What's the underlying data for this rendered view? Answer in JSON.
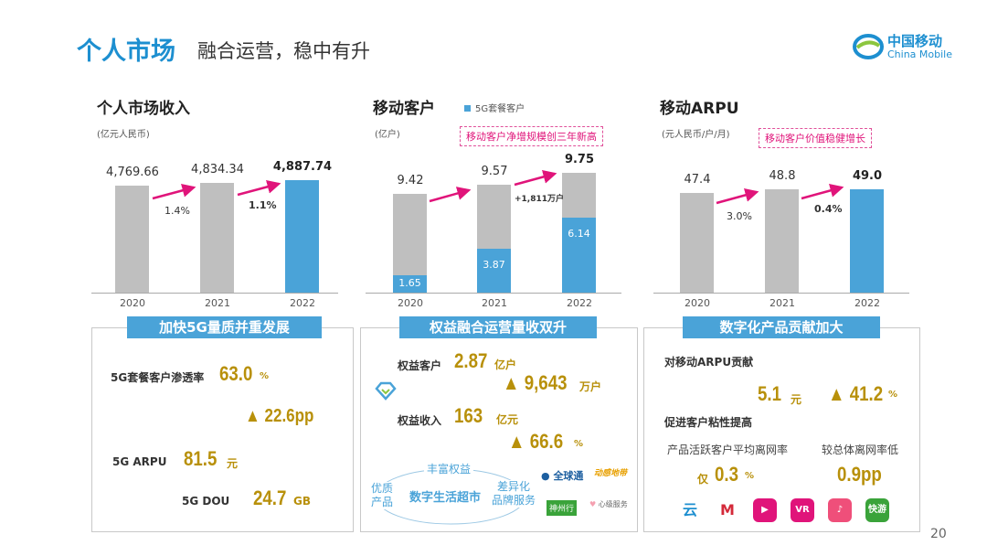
{
  "header": {
    "title": "个人市场",
    "subtitle": "融合运营，稳中有升",
    "logo_cn": "中国移动",
    "logo_en": "China Mobile"
  },
  "chart_data": [
    {
      "type": "bar",
      "title": "个人市场收入",
      "unit": "(亿元人民币)",
      "categories": [
        "2020",
        "2021",
        "2022"
      ],
      "values": [
        4769.66,
        4834.34,
        4887.74
      ],
      "value_labels": [
        "4,769.66",
        "4,834.34",
        "4,887.74"
      ],
      "growth_labels": [
        "1.4%",
        "1.1%"
      ],
      "highlight_color": "#4aa3d8",
      "base_color": "#bfbfbf"
    },
    {
      "type": "bar",
      "title": "移动客户",
      "unit": "(亿户)",
      "legend": "5G套餐客户",
      "callout": "移动客户净增规模创三年新高",
      "categories": [
        "2020",
        "2021",
        "2022"
      ],
      "series": [
        {
          "name": "total",
          "values": [
            9.42,
            9.57,
            9.75
          ]
        },
        {
          "name": "5G套餐客户",
          "values": [
            1.65,
            3.87,
            6.14
          ]
        }
      ],
      "value_labels": [
        "9.42",
        "9.57",
        "9.75"
      ],
      "sub_labels": [
        "1.65",
        "3.87",
        "6.14"
      ],
      "growth_labels": [
        "+1,811万户"
      ],
      "arrow_color": "#e0147a"
    },
    {
      "type": "bar",
      "title": "移动ARPU",
      "unit": "(元人民币/户/月)",
      "callout": "移动客户价值稳健增长",
      "categories": [
        "2020",
        "2021",
        "2022"
      ],
      "values": [
        47.4,
        48.8,
        49.0
      ],
      "value_labels": [
        "47.4",
        "48.8",
        "49.0"
      ],
      "growth_labels": [
        "3.0%",
        "0.4%"
      ]
    }
  ],
  "box1": {
    "heading": "加快5G量质并重发展",
    "pen_label": "5G套餐客户渗透率",
    "pen_value": "63.0",
    "pen_unit": "%",
    "pen_delta": "▲ 22.6pp",
    "arpu_label": "5G ARPU",
    "arpu_value": "81.5",
    "arpu_unit": "元",
    "dou_label": "5G DOU",
    "dou_value": "24.7",
    "dou_unit": "GB"
  },
  "box2": {
    "heading": "权益融合运营量收双升",
    "cust_label": "权益客户",
    "cust_value": "2.87",
    "cust_unit": "亿户",
    "cust_delta": "▲ 9,643",
    "cust_delta_unit": "万户",
    "rev_label": "权益收入",
    "rev_value": "163",
    "rev_unit": "亿元",
    "rev_delta": "▲ 66.6",
    "rev_delta_unit": "%",
    "ring_top": "丰富权益",
    "ring_left": "优质\n产品",
    "ring_center": "数字生活超市",
    "ring_right": "差异化\n品牌服务",
    "brand1": "全球通",
    "brand2": "动感地带",
    "brand3": "神州行",
    "brand4": "心级服务"
  },
  "box3": {
    "heading": "数字化产品贡献加大",
    "contrib_label": "对移动ARPU贡献",
    "contrib_value": "5.1",
    "contrib_unit": "元",
    "contrib_delta": "▲ 41.2",
    "contrib_delta_unit": "%",
    "sticky_label": "促进客户粘性提高",
    "churn_label": "产品活跃客户平均离网率",
    "churn_prefix": "仅",
    "churn_value": "0.3",
    "churn_unit": "%",
    "lower_label": "较总体离网率低",
    "lower_value": "0.9pp",
    "apps": [
      {
        "name": "cloud",
        "text": "云",
        "color": "#1d8fd0"
      },
      {
        "name": "migu",
        "text": "M",
        "color": "#d42a3a"
      },
      {
        "name": "video-ring",
        "text": "▶",
        "color": "#e0147a"
      },
      {
        "name": "vr",
        "text": "VR",
        "color": "#e0147a"
      },
      {
        "name": "music",
        "text": "♪",
        "color": "#ef4f7a"
      },
      {
        "name": "kuaiyou",
        "text": "快游",
        "color": "#3aa33a"
      }
    ]
  },
  "page_number": "20"
}
